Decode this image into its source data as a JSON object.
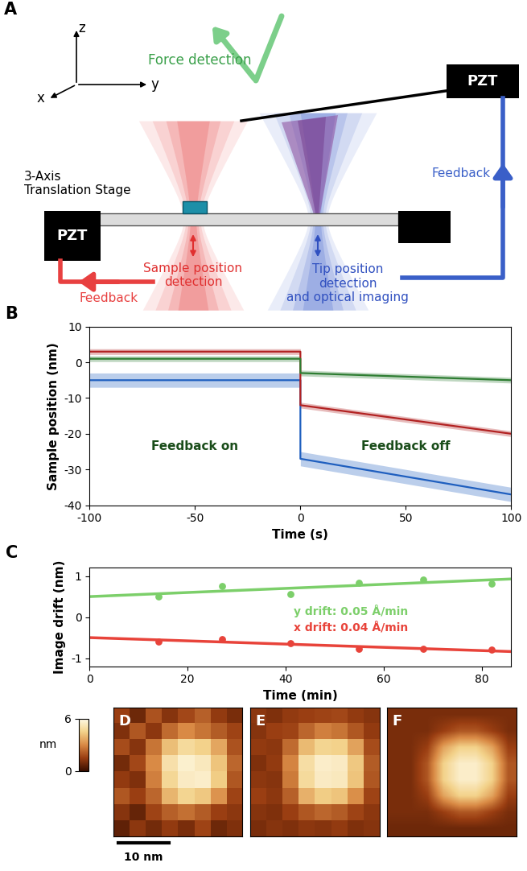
{
  "panel_labels": [
    "A",
    "B",
    "C",
    "D",
    "E",
    "F"
  ],
  "diagram": {
    "axes_labels": {
      "x": "x",
      "y": "y",
      "z": "z"
    },
    "force_detection": "Force detection",
    "pzt_labels": [
      "PZT",
      "PZT"
    ],
    "stage_label": "3-Axis\nTranslation Stage",
    "feedback_labels": [
      "Feedback",
      "Feedback"
    ],
    "sample_detection": "Sample position\ndetection",
    "tip_detection": "Tip position\ndetection\nand optical imaging"
  },
  "chart_data": [
    {
      "type": "line",
      "xlabel": "Time (s)",
      "ylabel": "Sample position (nm)",
      "xlim": [
        -100,
        100
      ],
      "xticks": [
        -100,
        -50,
        0,
        50,
        100
      ],
      "ylim": [
        -40,
        10
      ],
      "yticks": [
        -40,
        -30,
        -20,
        -10,
        0,
        10
      ],
      "annotations": [
        "Feedback on",
        "Feedback off"
      ],
      "series": [
        {
          "color": "#1f5fbf",
          "x": [
            -100,
            0,
            0,
            100
          ],
          "values": [
            -5,
            -5,
            -27,
            -37
          ],
          "spread": 2
        },
        {
          "color": "#b22222",
          "x": [
            -100,
            0,
            0,
            100
          ],
          "values": [
            3,
            3,
            -12,
            -20
          ],
          "spread": 0.8
        },
        {
          "color": "#2e7d32",
          "x": [
            -100,
            0,
            0,
            100
          ],
          "values": [
            1,
            1,
            -3,
            -5
          ],
          "spread": 0.8
        }
      ]
    },
    {
      "type": "scatter",
      "xlabel": "Time (min)",
      "ylabel": "Image drift (nm)",
      "xlim": [
        0,
        86
      ],
      "xticks": [
        0,
        20,
        40,
        60,
        80
      ],
      "ylim": [
        -1.2,
        1.2
      ],
      "yticks": [
        -1,
        0,
        1
      ],
      "series": [
        {
          "name": "y drift: 0.05 Å/min",
          "color": "#7ccf6a",
          "x": [
            14,
            27,
            41,
            55,
            68,
            82
          ],
          "values": [
            0.5,
            0.75,
            0.57,
            0.83,
            0.92,
            0.82
          ],
          "fit": {
            "x": [
              0,
              86
            ],
            "values": [
              0.5,
              0.93
            ]
          }
        },
        {
          "name": "x drift: 0.04 Å/min",
          "color": "#e8433a",
          "x": [
            14,
            27,
            41,
            55,
            68,
            82
          ],
          "values": [
            -0.6,
            -0.53,
            -0.63,
            -0.78,
            -0.78,
            -0.8
          ],
          "fit": {
            "x": [
              0,
              86
            ],
            "values": [
              -0.5,
              -0.84
            ]
          }
        }
      ]
    }
  ],
  "images": {
    "colorbar": {
      "label": "nm",
      "range": [
        0,
        6
      ],
      "ticks": [
        0,
        6
      ]
    },
    "scale_bar": "10 nm",
    "cells": [
      [
        [
          1.5,
          0.8,
          1.9,
          1.2,
          1.7,
          2.2,
          1.4,
          1.0
        ],
        [
          1.1,
          2.0,
          1.3,
          2.4,
          3.0,
          2.6,
          2.1,
          1.6
        ],
        [
          1.8,
          1.2,
          2.6,
          4.1,
          4.8,
          4.5,
          3.6,
          1.9
        ],
        [
          0.9,
          1.7,
          3.0,
          5.0,
          5.6,
          5.3,
          4.2,
          2.3
        ],
        [
          1.4,
          1.1,
          2.8,
          4.7,
          5.4,
          5.5,
          4.4,
          2.0
        ],
        [
          2.0,
          1.5,
          2.3,
          3.9,
          4.6,
          4.3,
          3.2,
          1.6
        ],
        [
          1.2,
          0.7,
          1.6,
          2.2,
          2.5,
          2.1,
          1.5,
          1.3
        ],
        [
          0.6,
          1.3,
          0.9,
          1.4,
          1.0,
          1.6,
          0.8,
          1.1
        ]
      ],
      [
        [
          1.3,
          1.1,
          1.4,
          1.5,
          1.6,
          1.7,
          1.4,
          1.2
        ],
        [
          1.2,
          1.5,
          1.6,
          2.3,
          2.8,
          2.6,
          2.0,
          1.4
        ],
        [
          1.4,
          1.3,
          2.4,
          4.0,
          4.6,
          4.5,
          3.5,
          1.8
        ],
        [
          1.1,
          1.4,
          2.9,
          4.9,
          5.5,
          5.4,
          4.3,
          2.1
        ],
        [
          1.3,
          1.2,
          2.7,
          4.8,
          5.4,
          5.3,
          4.2,
          2.0
        ],
        [
          1.5,
          1.3,
          2.2,
          3.8,
          4.4,
          4.2,
          3.1,
          1.6
        ],
        [
          1.2,
          1.1,
          1.5,
          2.0,
          2.3,
          2.1,
          1.6,
          1.3
        ],
        [
          1.0,
          1.2,
          1.1,
          1.3,
          1.2,
          1.4,
          1.1,
          1.2
        ]
      ],
      [
        [
          1.0,
          1.0,
          1.0,
          1.0,
          1.0,
          1.0,
          1.0,
          1.0
        ],
        [
          1.0,
          1.0,
          1.0,
          1.5,
          2.0,
          2.0,
          1.5,
          1.0
        ],
        [
          1.0,
          1.0,
          1.5,
          3.5,
          4.5,
          4.5,
          3.5,
          1.5
        ],
        [
          1.0,
          1.0,
          2.0,
          4.5,
          5.5,
          5.5,
          4.5,
          2.0
        ],
        [
          1.0,
          1.0,
          2.0,
          4.5,
          5.5,
          5.5,
          4.5,
          2.0
        ],
        [
          1.0,
          1.0,
          1.5,
          3.5,
          4.5,
          4.5,
          3.5,
          1.5
        ],
        [
          1.0,
          1.0,
          1.0,
          1.5,
          2.0,
          2.0,
          1.5,
          1.0
        ],
        [
          0.8,
          0.8,
          0.8,
          0.8,
          0.8,
          0.8,
          0.8,
          0.8
        ]
      ]
    ]
  }
}
